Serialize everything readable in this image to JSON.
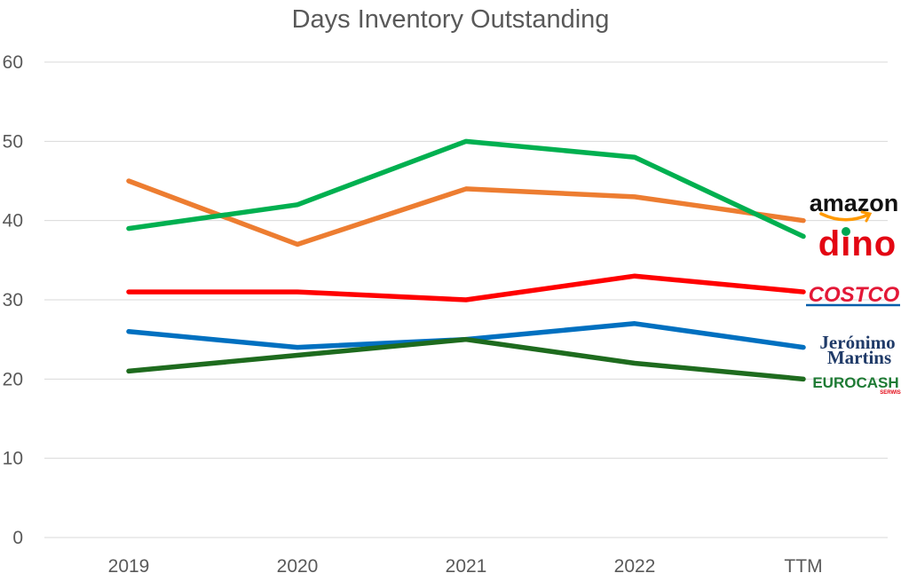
{
  "chart_data": {
    "type": "line",
    "title": "Days Inventory Outstanding",
    "categories": [
      "2019",
      "2020",
      "2021",
      "2022",
      "TTM"
    ],
    "ylim": [
      0,
      60
    ],
    "yticks": [
      0,
      10,
      20,
      30,
      40,
      50,
      60
    ],
    "grid": true,
    "legend": "logos at right end of lines",
    "series": [
      {
        "name": "amazon",
        "color": "#ED7D31",
        "values": [
          45,
          37,
          44,
          43,
          40
        ]
      },
      {
        "name": "dino",
        "color": "#00B050",
        "values": [
          39,
          42,
          50,
          48,
          38
        ]
      },
      {
        "name": "COSTCO",
        "color": "#FF0000",
        "values": [
          31,
          31,
          30,
          33,
          31
        ]
      },
      {
        "name": "Jerónimo Martins",
        "color": "#0070C0",
        "values": [
          26,
          24,
          25,
          27,
          24
        ]
      },
      {
        "name": "EUROCASH",
        "color": "#1E6B1E",
        "values": [
          21,
          23,
          25,
          22,
          20
        ]
      }
    ]
  },
  "logos": {
    "amazon": "amazon",
    "dino": "dino",
    "costco": "COSTCO",
    "jeronimo_line1": "Jerónimo",
    "jeronimo_line2": "Martins",
    "eurocash": "EUROCASH",
    "eurocash_sub": "SERWIS"
  }
}
